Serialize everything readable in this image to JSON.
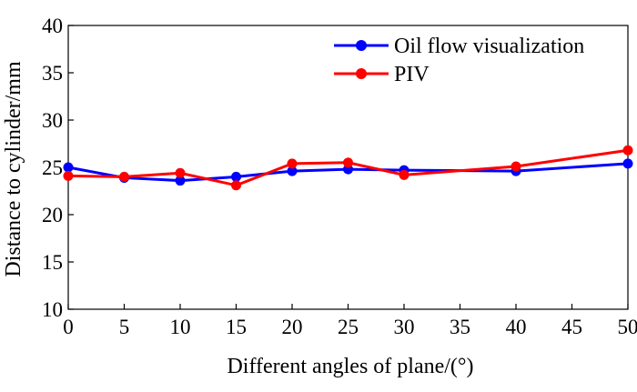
{
  "chart_data": {
    "type": "line",
    "title": "",
    "xlabel": "Different angles of plane/(°)",
    "ylabel": "Distance to cylinder/mm",
    "xlim": [
      0,
      50
    ],
    "ylim": [
      10,
      40
    ],
    "xticks": [
      0,
      5,
      10,
      15,
      20,
      25,
      30,
      35,
      40,
      45,
      50
    ],
    "yticks": [
      10,
      15,
      20,
      25,
      30,
      35,
      40
    ],
    "grid": false,
    "legend_position": "top-right",
    "series": [
      {
        "name": "Oil flow visualization",
        "color": "#0000ff",
        "x": [
          0,
          5,
          10,
          15,
          20,
          25,
          30,
          40,
          50
        ],
        "y": [
          25.0,
          23.9,
          23.6,
          24.0,
          24.6,
          24.8,
          24.7,
          24.6,
          25.4
        ]
      },
      {
        "name": "PIV",
        "color": "#ff0000",
        "x": [
          0,
          5,
          10,
          15,
          20,
          25,
          30,
          40,
          50
        ],
        "y": [
          24.1,
          24.0,
          24.4,
          23.1,
          25.4,
          25.5,
          24.2,
          25.1,
          26.8
        ]
      }
    ]
  }
}
